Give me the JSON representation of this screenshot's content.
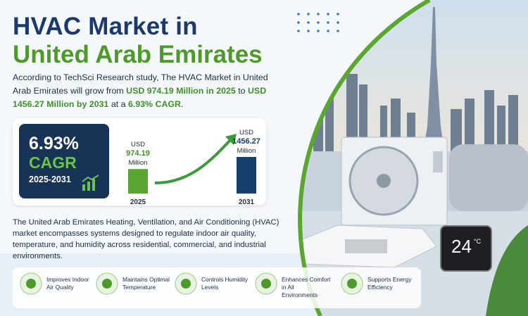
{
  "header": {
    "title_line1": "HVAC Market in",
    "title_line2": "United Arab Emirates"
  },
  "intro": [
    "According to TechSci Research study, The HVAC Market in United Arab Emirates will grow from ",
    "USD 974.19 Million in 2025",
    " to ",
    "USD 1456.27 Million by 2031",
    " at a ",
    "6.93% CAGR",
    "."
  ],
  "cagr": {
    "value": "6.93%",
    "label": "CAGR",
    "period": "2025-2031"
  },
  "chart_data": {
    "type": "bar",
    "categories": [
      "2025",
      "2031"
    ],
    "values": [
      974.19,
      1456.27
    ],
    "unit_prefix": "USD",
    "unit_suffix": "Million",
    "colors": [
      "#5aa630",
      "#173f6e"
    ]
  },
  "description": "The United Arab Emirates Heating, Ventilation, and Air Conditioning (HVAC) market encompasses systems designed to regulate indoor air quality, temperature, and humidity across residential, commercial, and industrial environments.",
  "features": [
    "Improves Indoor Air Quality",
    "Maintains Optimal Temperature",
    "Controls Humidity Levels",
    "Enhances Comfort in All Environments",
    "Supports Energy Efficiency"
  ],
  "thermostat": {
    "reading": "24",
    "unit": "°C"
  }
}
